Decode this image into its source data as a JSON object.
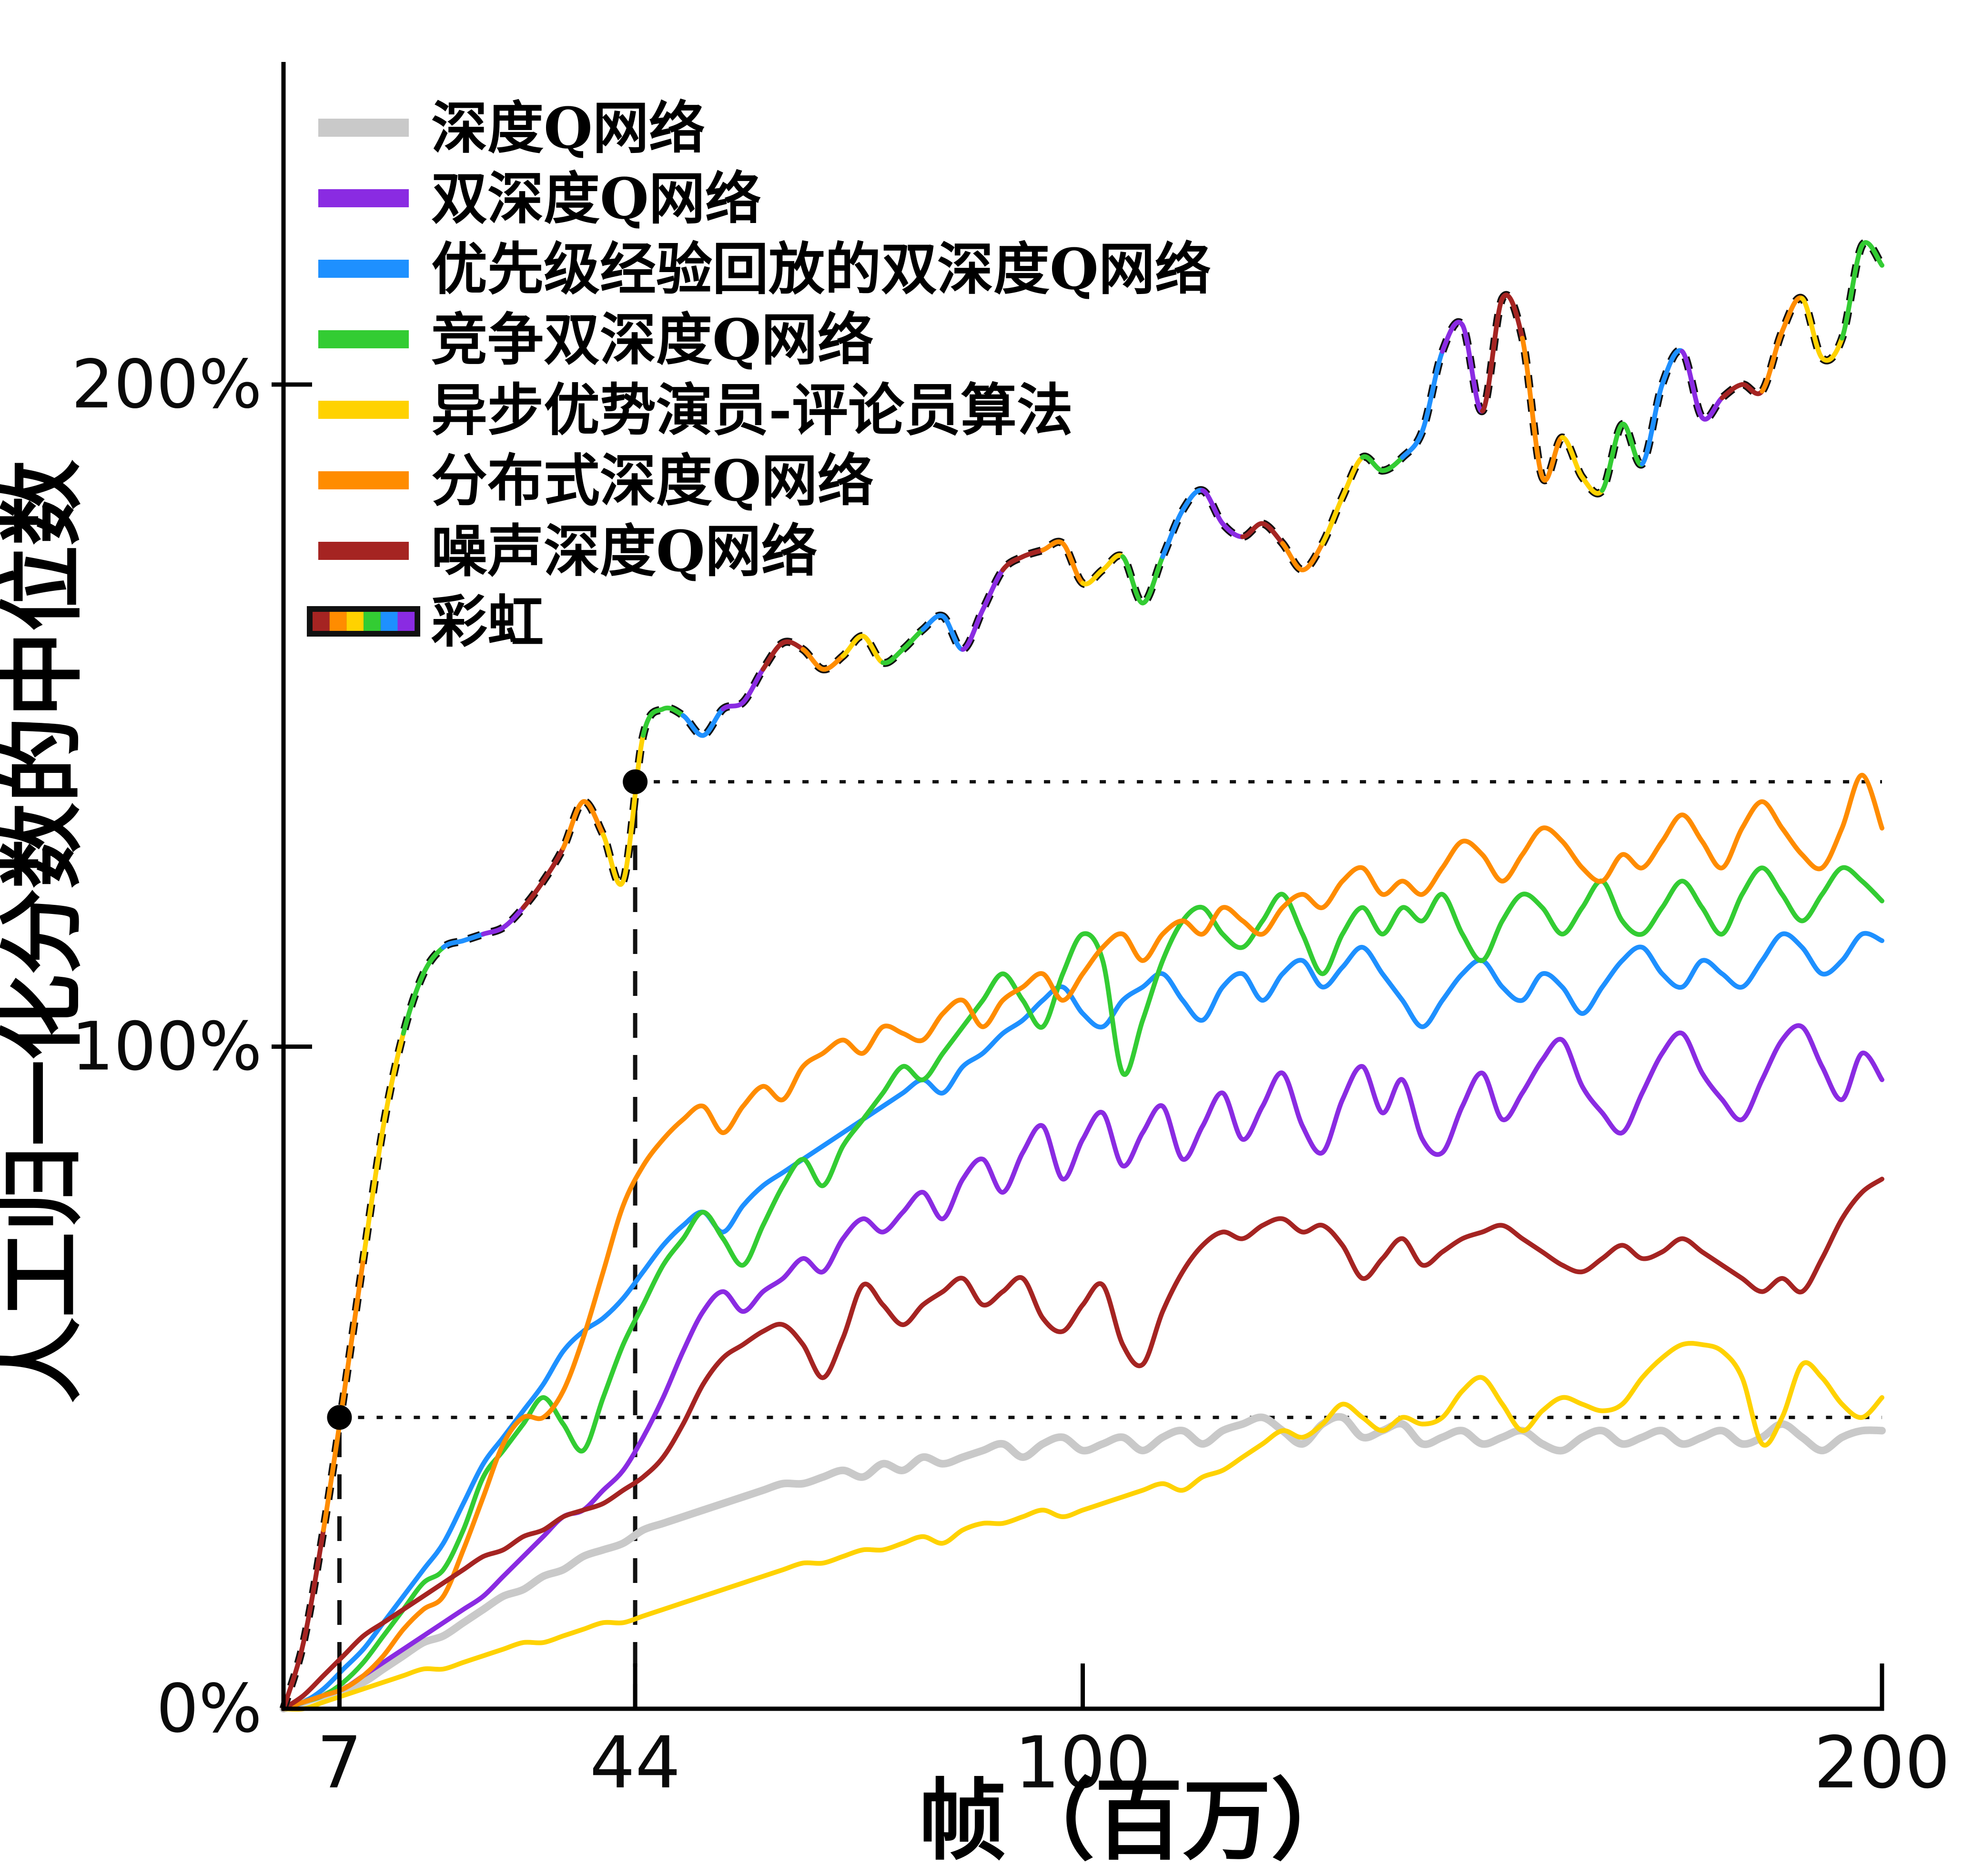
{
  "figure": {
    "background": "#ffffff",
    "axis_color": "#000000"
  },
  "chart_data": {
    "type": "line",
    "title": "",
    "xlabel": "帧（百万）",
    "ylabel": "人工归一化分数的中位数",
    "xlim": [
      0,
      200
    ],
    "ylim": [
      0,
      248
    ],
    "grid": false,
    "legend_position": "upper-left",
    "xticks": {
      "values": [
        7,
        44,
        100,
        200
      ],
      "labels": [
        "7",
        "44",
        "100",
        "200"
      ]
    },
    "yticks": {
      "values": [
        0,
        100,
        200
      ],
      "labels": [
        "0%",
        "100%",
        "200%"
      ]
    },
    "x": [
      0,
      2.5,
      5,
      7.5,
      10,
      12.5,
      15,
      17.5,
      20,
      22.5,
      25,
      27.5,
      30,
      32.5,
      35,
      37.5,
      40,
      42.5,
      45,
      47.5,
      50,
      52.5,
      55,
      57.5,
      60,
      62.5,
      65,
      67.5,
      70,
      72.5,
      75,
      77.5,
      80,
      82.5,
      85,
      87.5,
      90,
      92.5,
      95,
      97.5,
      100,
      102.5,
      105,
      107.5,
      110,
      112.5,
      115,
      117.5,
      120,
      122.5,
      125,
      127.5,
      130,
      132.5,
      135,
      137.5,
      140,
      142.5,
      145,
      147.5,
      150,
      152.5,
      155,
      157.5,
      160,
      162.5,
      165,
      167.5,
      170,
      172.5,
      175,
      177.5,
      180,
      182.5,
      185,
      187.5,
      190,
      192.5,
      195,
      197.5,
      200
    ],
    "series": [
      {
        "id": "dqn",
        "name": "深度Q网络",
        "color": "#c9c9c9",
        "width": 16,
        "rainbow": false,
        "values": [
          0,
          1,
          2,
          3,
          4,
          6,
          8,
          10,
          11,
          13,
          15,
          17,
          18,
          20,
          21,
          23,
          24,
          25,
          27,
          28,
          29,
          30,
          31,
          32,
          33,
          34,
          34,
          35,
          36,
          35,
          37,
          36,
          38,
          37,
          38,
          39,
          40,
          38,
          40,
          41,
          39,
          40,
          41,
          39,
          41,
          42,
          40,
          42,
          43,
          44,
          42,
          40,
          43,
          44,
          41,
          42,
          43,
          40,
          41,
          42,
          40,
          41,
          42,
          40,
          39,
          41,
          42,
          40,
          41,
          42,
          40,
          41,
          42,
          40,
          41,
          43,
          41,
          39,
          41,
          42,
          42
        ]
      },
      {
        "id": "ddqn",
        "name": "双深度Q网络",
        "color": "#8a2be2",
        "width": 10,
        "rainbow": false,
        "values": [
          0,
          1,
          2,
          3,
          5,
          7,
          9,
          11,
          13,
          15,
          17,
          20,
          23,
          26,
          29,
          30,
          33,
          36,
          41,
          47,
          54,
          60,
          63,
          60,
          63,
          65,
          68,
          66,
          71,
          74,
          72,
          75,
          78,
          74,
          80,
          83,
          78,
          84,
          88,
          80,
          86,
          90,
          82,
          87,
          91,
          83,
          88,
          93,
          86,
          91,
          96,
          88,
          84,
          92,
          97,
          90,
          95,
          86,
          84,
          91,
          96,
          89,
          93,
          98,
          101,
          94,
          90,
          87,
          93,
          99,
          102,
          96,
          92,
          89,
          95,
          101,
          103,
          97,
          92,
          99,
          95
        ]
      },
      {
        "id": "prioritized-ddqn",
        "name": "优先级经验回放的双深度Q网络",
        "color": "#1e90ff",
        "width": 10,
        "rainbow": false,
        "values": [
          0,
          1,
          3,
          6,
          9,
          13,
          17,
          21,
          25,
          31,
          37,
          41,
          45,
          49,
          54,
          57,
          59,
          62,
          66,
          70,
          73,
          75,
          72,
          76,
          79,
          81,
          83,
          85,
          87,
          89,
          91,
          93,
          95,
          93,
          97,
          99,
          102,
          104,
          107,
          109,
          105,
          103,
          107,
          109,
          111,
          107,
          104,
          109,
          111,
          107,
          111,
          113,
          109,
          112,
          115,
          111,
          107,
          103,
          107,
          111,
          113,
          109,
          107,
          111,
          109,
          105,
          109,
          113,
          115,
          111,
          109,
          113,
          111,
          109,
          113,
          117,
          115,
          111,
          113,
          117,
          116
        ]
      },
      {
        "id": "dueling-ddqn",
        "name": "竞争双深度Q网络",
        "color": "#33cc33",
        "width": 10,
        "rainbow": false,
        "values": [
          0,
          1,
          2,
          4,
          7,
          11,
          15,
          19,
          21,
          27,
          35,
          39,
          43,
          47,
          43,
          39,
          47,
          55,
          61,
          67,
          71,
          75,
          71,
          67,
          73,
          79,
          83,
          79,
          85,
          89,
          93,
          97,
          95,
          99,
          103,
          107,
          111,
          107,
          103,
          111,
          117,
          113,
          96,
          104,
          113,
          119,
          121,
          117,
          115,
          119,
          123,
          117,
          111,
          117,
          121,
          117,
          121,
          119,
          123,
          117,
          113,
          119,
          123,
          121,
          117,
          121,
          125,
          119,
          117,
          121,
          125,
          121,
          117,
          123,
          127,
          123,
          119,
          123,
          127,
          125,
          122
        ]
      },
      {
        "id": "a3c",
        "name": "异步优势演员-评论员算法",
        "color": "#ffd200",
        "width": 10,
        "rainbow": false,
        "values": [
          0,
          0,
          1,
          2,
          3,
          4,
          5,
          6,
          6,
          7,
          8,
          9,
          10,
          10,
          11,
          12,
          13,
          13,
          14,
          15,
          16,
          17,
          18,
          19,
          20,
          21,
          22,
          22,
          23,
          24,
          24,
          25,
          26,
          25,
          27,
          28,
          28,
          29,
          30,
          29,
          30,
          31,
          32,
          33,
          34,
          33,
          35,
          36,
          38,
          40,
          42,
          41,
          43,
          46,
          44,
          42,
          44,
          43,
          44,
          48,
          50,
          46,
          42,
          45,
          47,
          46,
          45,
          46,
          50,
          53,
          55,
          55,
          54,
          50,
          40,
          44,
          52,
          50,
          46,
          44,
          47
        ]
      },
      {
        "id": "distributional-dqn",
        "name": "分布式深度Q网络",
        "color": "#ff8c00",
        "width": 10,
        "rainbow": false,
        "values": [
          0,
          1,
          2,
          3,
          5,
          8,
          12,
          15,
          17,
          24,
          32,
          40,
          44,
          44,
          48,
          56,
          66,
          76,
          82,
          86,
          89,
          91,
          87,
          91,
          94,
          92,
          97,
          99,
          101,
          99,
          103,
          102,
          101,
          105,
          107,
          103,
          107,
          109,
          111,
          107,
          111,
          115,
          117,
          113,
          117,
          119,
          117,
          121,
          119,
          117,
          121,
          123,
          121,
          125,
          127,
          123,
          125,
          123,
          127,
          131,
          129,
          125,
          129,
          133,
          131,
          127,
          125,
          129,
          127,
          131,
          135,
          131,
          127,
          133,
          137,
          133,
          129,
          127,
          133,
          141,
          133
        ]
      },
      {
        "id": "noisy-dqn",
        "name": "噪声深度Q网络",
        "color": "#a52422",
        "width": 10,
        "rainbow": false,
        "values": [
          0,
          2,
          5,
          8,
          11,
          13,
          15,
          17,
          19,
          21,
          23,
          24,
          26,
          27,
          29,
          30,
          31,
          33,
          35,
          38,
          43,
          49,
          53,
          55,
          57,
          58,
          55,
          50,
          56,
          64,
          61,
          58,
          61,
          63,
          65,
          61,
          63,
          65,
          59,
          57,
          61,
          64,
          55,
          52,
          60,
          66,
          70,
          72,
          71,
          73,
          74,
          72,
          73,
          70,
          65,
          68,
          71,
          67,
          69,
          71,
          72,
          73,
          71,
          69,
          67,
          66,
          68,
          70,
          68,
          69,
          71,
          69,
          67,
          65,
          63,
          65,
          63,
          68,
          74,
          78,
          80
        ]
      },
      {
        "id": "rainbow",
        "name": "彩虹",
        "color": "#111111",
        "width": 10,
        "rainbow": true,
        "rainbow_colors": [
          "#a52422",
          "#ff8c00",
          "#ffd200",
          "#33cc33",
          "#1e90ff",
          "#8a2be2"
        ],
        "outline": {
          "color": "#111111",
          "width": 17,
          "dash": "26 24"
        },
        "values": [
          0,
          10,
          27,
          47,
          68,
          88,
          102,
          111,
          115,
          116,
          117,
          118,
          121,
          125,
          130,
          137,
          132,
          125,
          147,
          151,
          150,
          147,
          151,
          152,
          157,
          161,
          160,
          157,
          159,
          162,
          158,
          160,
          163,
          165,
          160,
          166,
          172,
          174,
          175,
          176,
          170,
          172,
          174,
          167,
          174,
          181,
          184,
          179,
          177,
          179,
          176,
          172,
          176,
          183,
          189,
          187,
          189,
          193,
          205,
          209,
          196,
          213,
          207,
          186,
          192,
          186,
          184,
          194,
          188,
          200,
          205,
          195,
          198,
          200,
          199,
          208,
          213,
          204,
          207,
          221,
          218
        ]
      }
    ],
    "annotations": {
      "dots": [
        {
          "x": 7,
          "y": 44
        },
        {
          "x": 44,
          "y": 140
        }
      ],
      "vlines": [
        {
          "x": 7,
          "y_from": 0,
          "y_to": 44,
          "style": "dashed"
        },
        {
          "x": 44,
          "y_from": 0,
          "y_to": 140,
          "style": "dashed"
        }
      ],
      "hlines": [
        {
          "y": 44,
          "x_from": 7,
          "x_to": 200,
          "style": "dotted"
        },
        {
          "y": 140,
          "x_from": 44,
          "x_to": 200,
          "style": "dotted"
        }
      ],
      "line_color": "#111111"
    }
  }
}
